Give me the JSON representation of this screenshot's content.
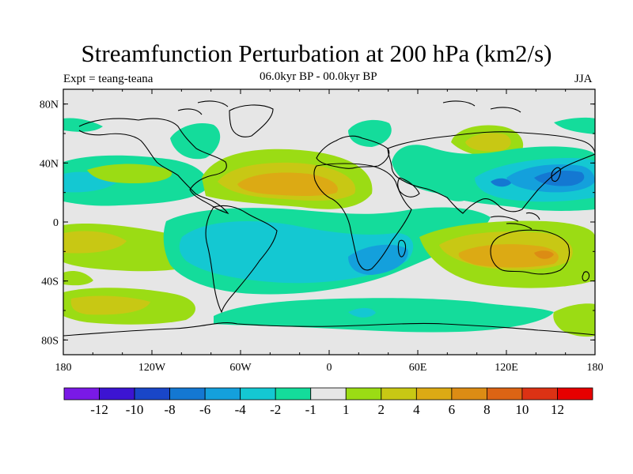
{
  "title": "Streamfunction Perturbation at 200 hPa (km2/s)",
  "left_subtitle": "Expt = teang-teana",
  "center_subtitle": "06.0kyr BP - 00.0kyr BP",
  "right_subtitle": "JJA",
  "map": {
    "projection": "cylindrical-equidistant",
    "lon_range": [
      -180,
      180
    ],
    "lat_range": [
      -90,
      90
    ],
    "x_tick_labels": [
      "180",
      "120W",
      "60W",
      "0",
      "60E",
      "120E",
      "180"
    ],
    "y_tick_labels": [
      "80N",
      "40N",
      "0",
      "40S",
      "80S"
    ]
  },
  "colorbar": {
    "labels": [
      "-12",
      "-10",
      "-8",
      "-6",
      "-4",
      "-2",
      "-1",
      "1",
      "2",
      "4",
      "6",
      "8",
      "10",
      "12"
    ],
    "colors": [
      "#7a19e6",
      "#3c14d2",
      "#1946c8",
      "#1478d2",
      "#14a0dc",
      "#14c8d2",
      "#14dc9b",
      "#e6e6e6",
      "#9bdc14",
      "#c8c814",
      "#dcaa14",
      "#dc8c14",
      "#dc6414",
      "#dc3214",
      "#e60000"
    ]
  }
}
